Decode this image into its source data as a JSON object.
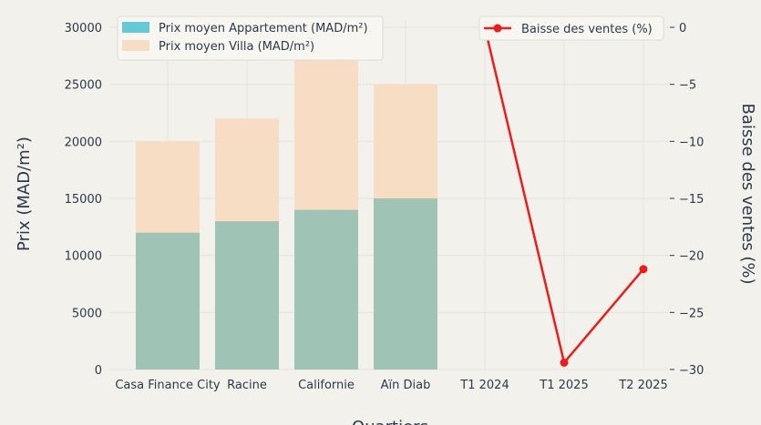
{
  "chart_data": {
    "type": "bar+line",
    "categories": [
      "Casa Finance City",
      "Racine",
      "Californie",
      "Aïn Diab",
      "T1 2024",
      "T1 2025",
      "T2 2025"
    ],
    "bar_series": [
      {
        "name": "Prix moyen Appartement (MAD/m²)",
        "color": "#9fc4b6",
        "legend_color": "#66c9d6",
        "values": [
          12000,
          13000,
          14000,
          15000
        ]
      },
      {
        "name": "Prix moyen Villa (MAD/m²)",
        "color": "#f7ddc3",
        "values": [
          8000,
          9000,
          16000,
          10000
        ]
      }
    ],
    "line_series": {
      "name": "Baisse des ventes (%)",
      "color": "#ee1b1b",
      "x": [
        "T1 2024",
        "T1 2025",
        "T2 2025"
      ],
      "values": [
        0,
        -29.4,
        -21.2
      ]
    },
    "ylabel": "Prix (MAD/m²)",
    "y2label": "Baisse des ventes (%)",
    "xlabel": "Quartiers",
    "ylim": [
      0,
      30000
    ],
    "y2lim": [
      -30,
      0
    ],
    "yticks": [
      0,
      5000,
      10000,
      15000,
      20000,
      25000,
      30000
    ],
    "y2ticks": [
      0,
      -5,
      -10,
      -15,
      -20,
      -25,
      -30
    ],
    "grid": true,
    "legend_left": "top-left",
    "legend_right": "top-right"
  }
}
